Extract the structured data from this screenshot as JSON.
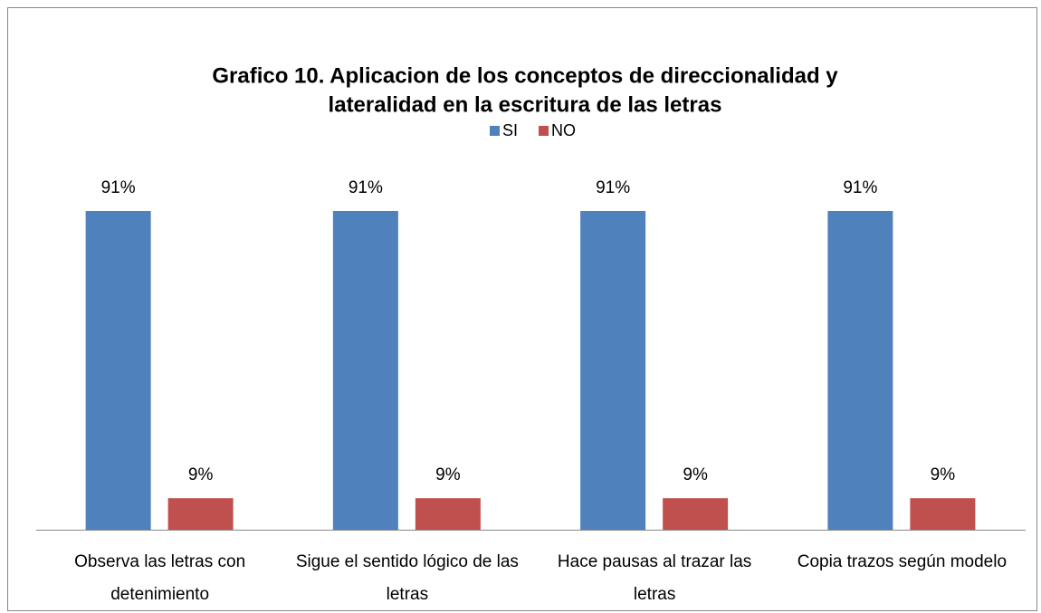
{
  "chart_data": {
    "type": "bar",
    "title": [
      "Grafico 10.  Aplicacion  de  los conceptos de direccionalidad y",
      "lateralidad en la escritura de las letras"
    ],
    "categories": [
      "Observa las letras con detenimiento",
      "Sigue el sentido lógico de las letras",
      "Hace pausas al trazar las letras",
      "Copia trazos según modelo"
    ],
    "series": [
      {
        "name": "SI",
        "color": "#4f81bd",
        "values": [
          91,
          91,
          91,
          91
        ],
        "value_labels": [
          "91%",
          "91%",
          "91%",
          "91%"
        ]
      },
      {
        "name": "NO",
        "color": "#c0504d",
        "values": [
          9,
          9,
          9,
          9
        ],
        "value_labels": [
          "9%",
          "9%",
          "9%",
          "9%"
        ]
      }
    ],
    "legend": "top"
  }
}
